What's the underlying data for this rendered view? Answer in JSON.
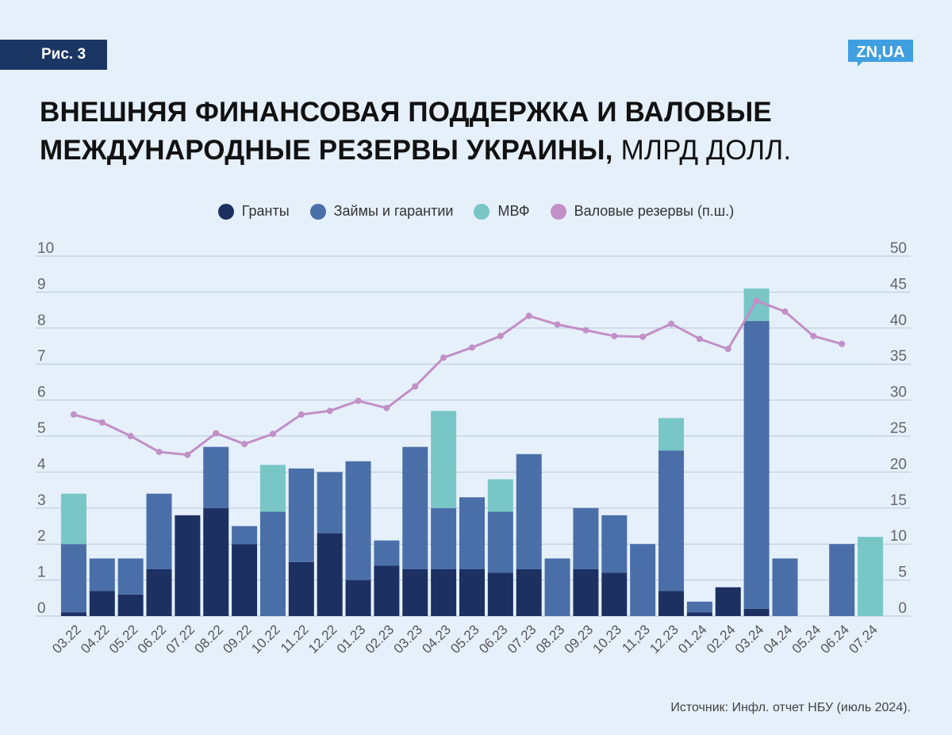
{
  "figure_label": "Рис. 3",
  "logo_text": "ZN,UA",
  "title_bold": "ВНЕШНЯЯ ФИНАНСОВАЯ ПОДДЕРЖКА И ВАЛОВЫЕ МЕЖДУНАРОДНЫЕ РЕЗЕРВЫ УКРАИНЫ,",
  "title_normal": " МЛРД ДОЛЛ.",
  "source": "Источник: Инфл. отчет НБУ (июль 2024).",
  "colors": {
    "background": "#e5f0fb",
    "grants": "#1c3061",
    "loans": "#4a6ea8",
    "imf": "#78c6c6",
    "reserves": "#c28fc6",
    "badge": "#1c3663",
    "logo": "#3f9fe0"
  },
  "chart_data": {
    "type": "bar",
    "stacked": true,
    "categories": [
      "03.22",
      "04.22",
      "05.22",
      "06.22",
      "07.22",
      "08.22",
      "09.22",
      "10.22",
      "11.22",
      "12.22",
      "01.23",
      "02.23",
      "03.23",
      "04.23",
      "05.23",
      "06.23",
      "07.23",
      "08.23",
      "09.23",
      "10.23",
      "11,23",
      "12.23",
      "01.24",
      "02.24",
      "03.24",
      "04.24",
      "05.24",
      "06.24",
      "07.24"
    ],
    "series": [
      {
        "name": "Гранты",
        "color_key": "grants",
        "axis": "left",
        "values": [
          0.1,
          0.7,
          0.6,
          1.3,
          2.8,
          3.0,
          2.0,
          0,
          1.5,
          2.3,
          1.0,
          1.4,
          1.3,
          1.3,
          1.3,
          1.2,
          1.3,
          0,
          1.3,
          1.2,
          0,
          0.7,
          0.1,
          0.8,
          0.2,
          0,
          0,
          0,
          0
        ]
      },
      {
        "name": "Займы и гарантии",
        "color_key": "loans",
        "axis": "left",
        "values": [
          1.9,
          0.9,
          1.0,
          2.1,
          0,
          1.7,
          0.5,
          2.9,
          2.6,
          1.7,
          3.3,
          0.7,
          3.4,
          1.7,
          2.0,
          1.7,
          3.2,
          1.6,
          1.7,
          1.6,
          2.0,
          3.9,
          0.3,
          0,
          8.0,
          1.6,
          0,
          2.0,
          0
        ]
      },
      {
        "name": "МВФ",
        "color_key": "imf",
        "axis": "left",
        "values": [
          1.4,
          0,
          0,
          0,
          0,
          0,
          0,
          1.3,
          0,
          0,
          0,
          0,
          0,
          2.7,
          0,
          0.9,
          0,
          0,
          0,
          0,
          0,
          0.9,
          0,
          0,
          0.9,
          0,
          0,
          0,
          2.2
        ]
      },
      {
        "name": "Валовые резервы (п.ш.)",
        "color_key": "reserves",
        "type": "line",
        "axis": "right",
        "values": [
          28.0,
          26.9,
          25.0,
          22.8,
          22.4,
          25.4,
          23.9,
          25.3,
          28.0,
          28.5,
          29.9,
          28.9,
          31.9,
          35.9,
          37.3,
          38.9,
          41.7,
          40.5,
          39.7,
          38.9,
          38.8,
          40.6,
          38.5,
          37.1,
          43.8,
          42.3,
          38.9,
          37.8,
          null
        ]
      }
    ],
    "y_left": {
      "min": 0,
      "max": 10,
      "ticks": [
        "0",
        "1",
        "2",
        "3",
        "4",
        "5",
        "6",
        "7",
        "8",
        "9",
        "10"
      ]
    },
    "y_right": {
      "min": 0,
      "max": 50,
      "ticks": [
        "0",
        "5",
        "10",
        "15",
        "20",
        "25",
        "30",
        "35",
        "40",
        "45",
        "50"
      ]
    },
    "grid": true,
    "legend_position": "top"
  }
}
